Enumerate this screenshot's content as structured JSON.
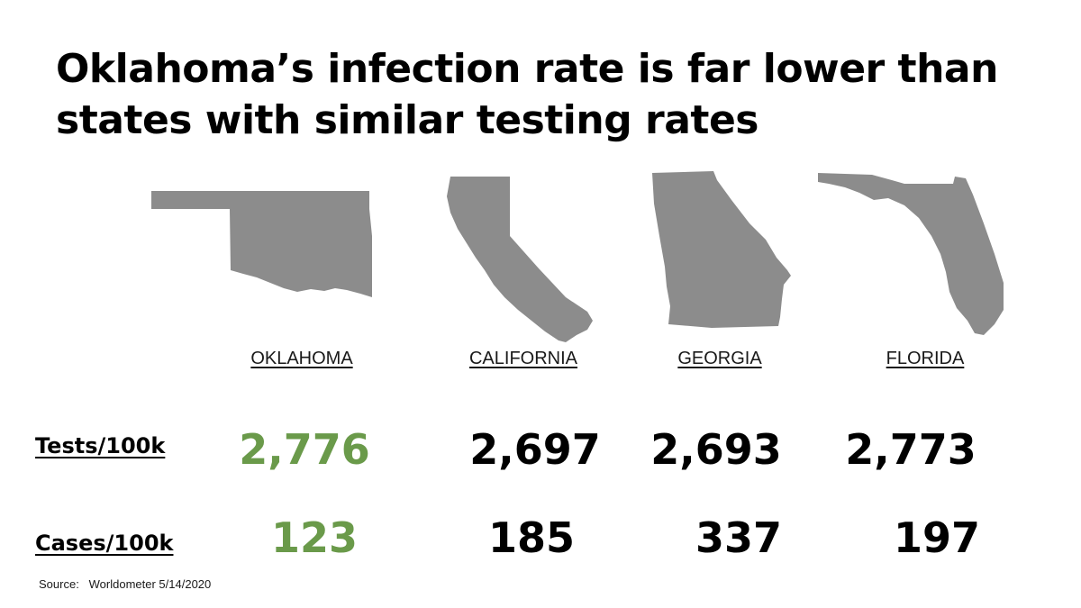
{
  "title": "Oklahoma’s infection rate is far lower than states with similar testing rates",
  "source": "Source:   Worldometer 5/14/2020",
  "colors": {
    "highlight": "#6a9a4a",
    "map": "#8c8c8c",
    "text": "#000000"
  },
  "chart_data": {
    "type": "table",
    "columns": [
      "OKLAHOMA",
      "CALIFORNIA",
      "GEORGIA",
      "FLORIDA"
    ],
    "rows": [
      {
        "label": "Tests/100k",
        "values": [
          "2,776",
          "2,697",
          "2,693",
          "2,773"
        ]
      },
      {
        "label": "Cases/100k",
        "values": [
          "123",
          "185",
          "337",
          "197"
        ]
      }
    ],
    "highlight_column": "OKLAHOMA"
  }
}
